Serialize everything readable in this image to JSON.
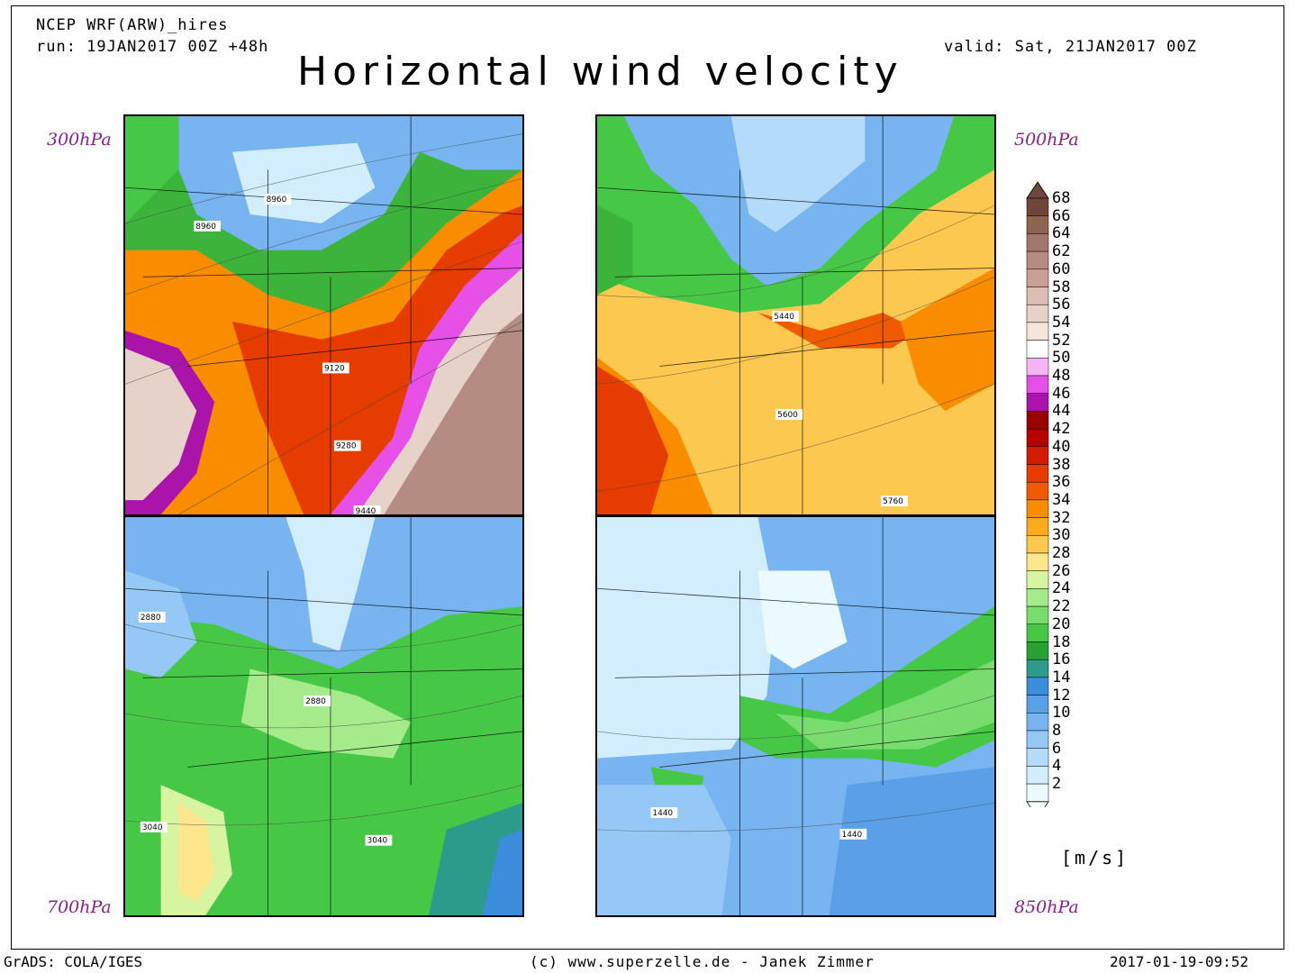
{
  "header": {
    "model": "NCEP WRF(ARW)_hires",
    "run": "run: 19JAN2017 00Z +48h",
    "valid": "valid: Sat, 21JAN2017 00Z",
    "title": "Horizontal wind velocity"
  },
  "panels": [
    {
      "level": "300hPa",
      "contours": [
        "8960",
        "8960",
        "9120",
        "9280",
        "9440"
      ]
    },
    {
      "level": "500hPa",
      "contours": [
        "5440",
        "5600",
        "5760"
      ]
    },
    {
      "level": "700hPa",
      "contours": [
        "2880",
        "2880",
        "3040",
        "3040"
      ]
    },
    {
      "level": "850hPa",
      "contours": [
        "1440",
        "1440"
      ]
    }
  ],
  "colorbar": {
    "unit": "[m/s]",
    "labels": [
      "68",
      "66",
      "64",
      "62",
      "60",
      "58",
      "56",
      "54",
      "52",
      "50",
      "48",
      "46",
      "44",
      "42",
      "40",
      "38",
      "36",
      "34",
      "32",
      "30",
      "28",
      "26",
      "24",
      "22",
      "20",
      "18",
      "16",
      "14",
      "12",
      "10",
      "8",
      "6",
      "4",
      "2"
    ],
    "colors": [
      "#6e463c",
      "#8c6450",
      "#a0786e",
      "#b48c82",
      "#c8a096",
      "#dcbeb4",
      "#e6d2c8",
      "#f5e6dc",
      "#ffffff",
      "#f5b4f5",
      "#e650e6",
      "#aa14aa",
      "#9b0000",
      "#b40000",
      "#d21e00",
      "#e63c00",
      "#f05a00",
      "#fa8c00",
      "#fcaa1e",
      "#fdc850",
      "#fde68c",
      "#d7f5a0",
      "#a5eb8c",
      "#78dc6e",
      "#46c846",
      "#28a032",
      "#2d9b8c",
      "#3c8cdc",
      "#5aa0e6",
      "#78b4f0",
      "#96c8f5",
      "#b4dcfa",
      "#d2eefc",
      "#ebfafe"
    ]
  },
  "footer": {
    "left": "GrADS: COLA/IGES",
    "center": "(c) www.superzelle.de - Janek Zimmer",
    "right": "2017-01-19-09:52"
  }
}
